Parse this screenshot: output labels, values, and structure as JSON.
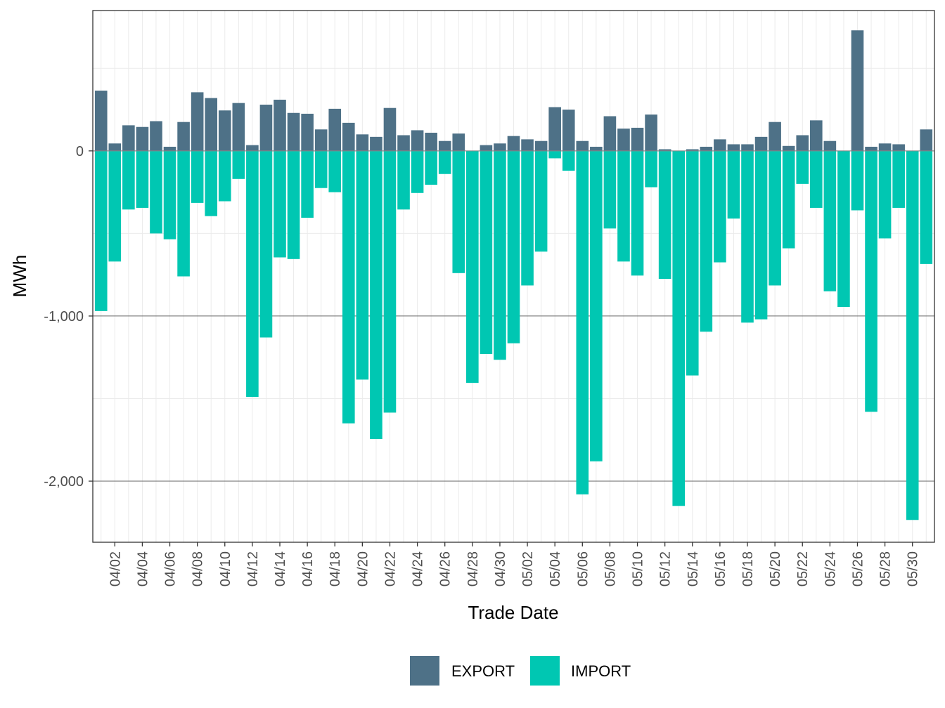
{
  "chart_data": {
    "type": "bar",
    "stacked": true,
    "xlabel": "Trade Date",
    "ylabel": "MWh",
    "ylim": [
      -2370,
      850
    ],
    "y_ticks": [
      0,
      -1000,
      -2000
    ],
    "y_tick_labels": [
      "0",
      "-1,000",
      "-2,000"
    ],
    "x_tick_labels": [
      "04/02",
      "04/04",
      "04/06",
      "04/08",
      "04/10",
      "04/12",
      "04/14",
      "04/16",
      "04/18",
      "04/20",
      "04/22",
      "04/24",
      "04/26",
      "04/28",
      "04/30",
      "05/02",
      "05/04",
      "05/06",
      "05/08",
      "05/10",
      "05/12",
      "05/14",
      "05/16",
      "05/18",
      "05/20",
      "05/22",
      "05/24",
      "05/26",
      "05/28",
      "05/30"
    ],
    "categories": [
      "04/01",
      "04/02",
      "04/03",
      "04/04",
      "04/05",
      "04/06",
      "04/07",
      "04/08",
      "04/09",
      "04/10",
      "04/11",
      "04/12",
      "04/13",
      "04/14",
      "04/15",
      "04/16",
      "04/17",
      "04/18",
      "04/19",
      "04/20",
      "04/21",
      "04/22",
      "04/23",
      "04/24",
      "04/25",
      "04/26",
      "04/27",
      "04/28",
      "04/29",
      "04/30",
      "05/01",
      "05/02",
      "05/03",
      "05/04",
      "05/05",
      "05/06",
      "05/07",
      "05/08",
      "05/09",
      "05/10",
      "05/11",
      "05/12",
      "05/13",
      "05/14",
      "05/15",
      "05/16",
      "05/17",
      "05/18",
      "05/19",
      "05/20",
      "05/21",
      "05/22",
      "05/23",
      "05/24",
      "05/25",
      "05/26",
      "05/27",
      "05/28",
      "05/29",
      "05/30",
      "05/31"
    ],
    "series": [
      {
        "name": "EXPORT",
        "color": "#4e7187",
        "values": [
          365,
          45,
          155,
          145,
          180,
          25,
          175,
          355,
          320,
          245,
          290,
          35,
          280,
          310,
          230,
          225,
          130,
          255,
          170,
          100,
          85,
          260,
          95,
          125,
          110,
          60,
          105,
          0,
          35,
          45,
          90,
          70,
          60,
          265,
          250,
          60,
          25,
          210,
          135,
          140,
          220,
          10,
          0,
          10,
          25,
          70,
          40,
          40,
          85,
          175,
          30,
          95,
          185,
          60,
          0,
          730,
          25,
          45,
          40,
          0,
          130
        ]
      },
      {
        "name": "IMPORT",
        "color": "#00c7b2",
        "values": [
          -970,
          -670,
          -355,
          -345,
          -500,
          -535,
          -760,
          -315,
          -395,
          -305,
          -170,
          -1490,
          -1130,
          -645,
          -655,
          -405,
          -225,
          -250,
          -1650,
          -1385,
          -1745,
          -1585,
          -355,
          -255,
          -205,
          -140,
          -740,
          -1405,
          -1230,
          -1265,
          -1165,
          -815,
          -610,
          -45,
          -120,
          -2080,
          -1880,
          -470,
          -670,
          -755,
          -220,
          -775,
          -2150,
          -1360,
          -1095,
          -675,
          -410,
          -1040,
          -1020,
          -815,
          -590,
          -200,
          -345,
          -850,
          -945,
          -360,
          -1580,
          -530,
          -345,
          -2235,
          -685
        ]
      }
    ],
    "legend": {
      "position": "bottom",
      "entries": [
        "EXPORT",
        "IMPORT"
      ]
    }
  }
}
